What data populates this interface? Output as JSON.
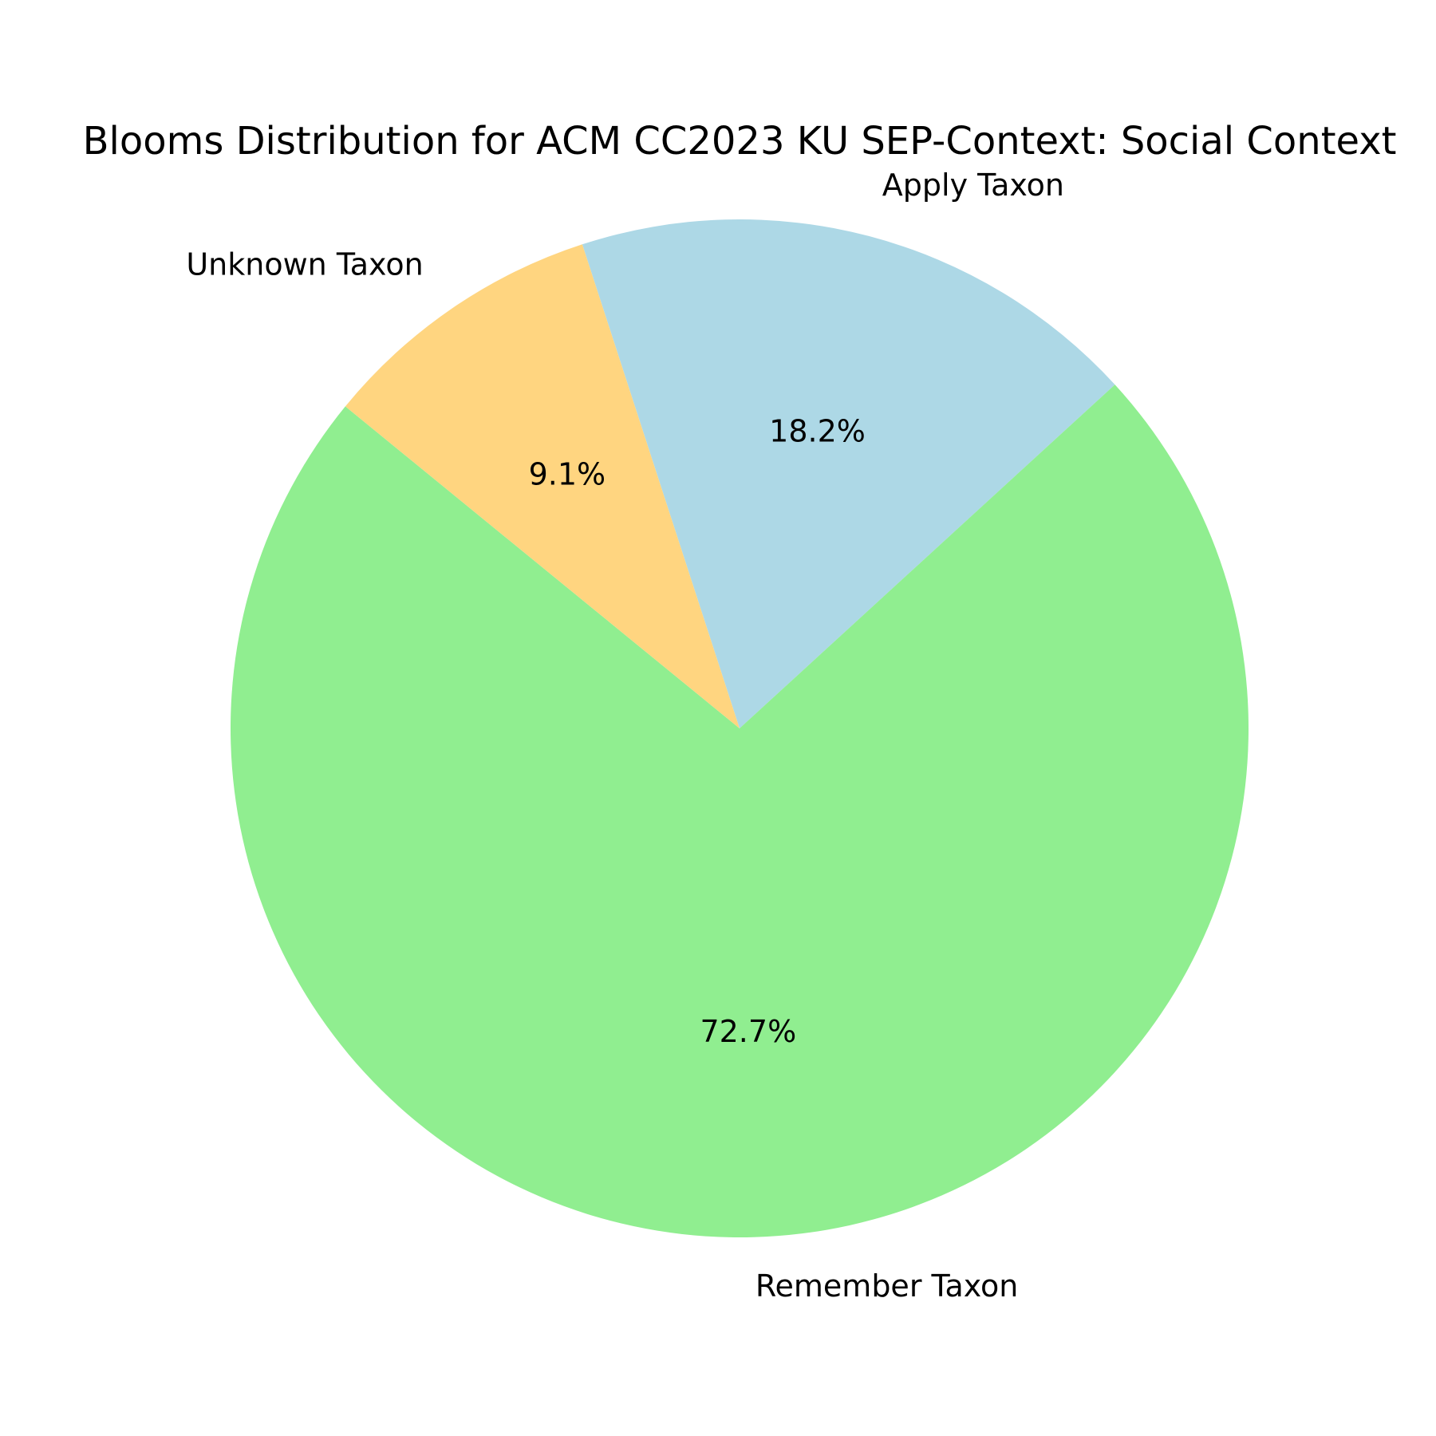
{
  "chart_data": {
    "type": "pie",
    "title": "Blooms Distribution for ACM CC2023 KU SEP-Context: Social Context",
    "labels": [
      "Apply Taxon",
      "Remember Taxon",
      "Unknown Taxon"
    ],
    "values": [
      18.2,
      72.7,
      9.1
    ],
    "value_labels": [
      "18.2%",
      "72.7%",
      "9.1%"
    ],
    "colors": [
      "#add8e6",
      "#90ee90",
      "#ffd580"
    ],
    "start_angle_deg": 108,
    "direction": "clockwise",
    "legend": "none"
  }
}
